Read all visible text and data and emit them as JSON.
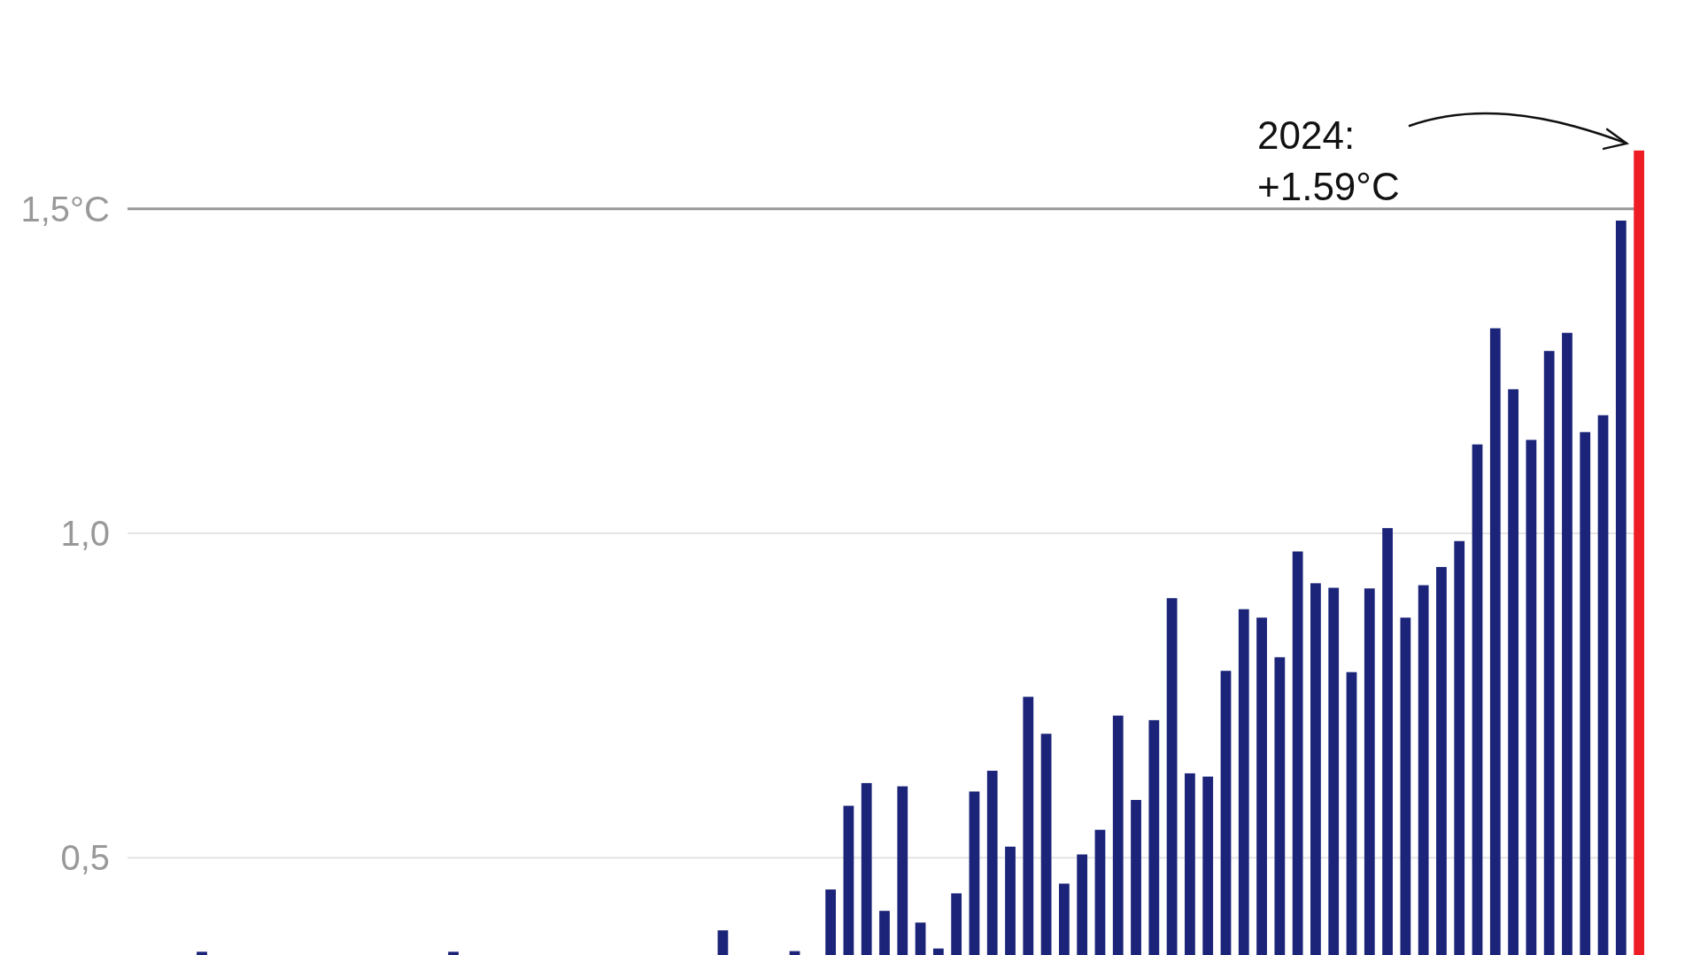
{
  "chart_data": {
    "type": "bar",
    "categories": [
      null,
      null,
      null,
      null,
      null,
      null,
      null,
      null,
      null,
      null,
      null,
      null,
      null,
      null,
      null,
      null,
      null,
      null,
      null,
      null,
      null,
      null,
      null,
      null,
      null,
      null,
      null,
      null,
      null,
      null,
      null,
      null,
      null,
      null,
      null,
      null,
      null,
      null,
      null,
      null,
      null,
      null,
      null,
      null,
      null,
      null,
      null,
      null,
      null,
      null,
      null,
      null,
      null,
      null,
      null,
      null,
      null,
      null,
      null,
      null,
      null,
      null,
      null,
      null,
      null,
      null,
      null,
      null,
      null,
      null,
      null,
      null,
      null,
      null,
      null,
      null,
      null,
      null,
      null,
      null,
      null,
      null,
      null,
      null,
      null
    ],
    "series": [
      {
        "color": "#1b2478",
        "values": [
          null,
          null,
          null,
          null,
          0.355,
          null,
          null,
          null,
          null,
          null,
          null,
          null,
          null,
          null,
          null,
          null,
          null,
          null,
          0.355,
          null,
          null,
          null,
          null,
          null,
          null,
          null,
          null,
          null,
          null,
          null,
          null,
          null,
          null,
          0.388,
          null,
          null,
          null,
          0.356,
          null,
          0.451,
          0.58,
          0.615,
          0.418,
          0.61,
          0.4,
          0.36,
          0.445,
          0.602,
          0.634,
          0.517,
          0.748,
          0.691,
          0.46,
          0.505,
          0.543,
          0.719,
          0.589,
          0.712,
          0.9,
          0.63,
          0.625,
          0.788,
          0.883,
          0.87,
          0.809,
          0.972,
          0.923,
          0.916,
          0.786,
          0.915,
          1.008,
          0.87,
          0.92,
          0.948,
          0.988,
          1.137,
          1.316,
          1.222,
          1.144,
          1.281,
          1.309,
          1.156,
          1.182,
          1.482,
          null
        ]
      },
      {
        "color": "#ee1c25",
        "values": [
          null,
          null,
          null,
          null,
          null,
          null,
          null,
          null,
          null,
          null,
          null,
          null,
          null,
          null,
          null,
          null,
          null,
          null,
          null,
          null,
          null,
          null,
          null,
          null,
          null,
          null,
          null,
          null,
          null,
          null,
          null,
          null,
          null,
          null,
          null,
          null,
          null,
          null,
          null,
          null,
          null,
          null,
          null,
          null,
          null,
          null,
          null,
          null,
          null,
          null,
          null,
          null,
          null,
          null,
          null,
          null,
          null,
          null,
          null,
          null,
          null,
          null,
          null,
          null,
          null,
          null,
          null,
          null,
          null,
          null,
          null,
          null,
          null,
          null,
          null,
          null,
          null,
          null,
          null,
          null,
          null,
          null,
          null,
          null,
          1.59
        ]
      }
    ],
    "ylim": [
      0.35,
      1.822
    ],
    "yticks": [
      {
        "value": 0.5,
        "label": "0,5"
      },
      {
        "value": 1,
        "label": "1,0"
      },
      {
        "value": 1.5,
        "label": "1,5°C"
      }
    ],
    "grid": "y",
    "tick_labels": "y",
    "ref_lines": [
      {
        "axis": "y",
        "value": 1.5,
        "color": "#999999"
      }
    ],
    "annotations": [
      "2024:\n+1.59°C"
    ]
  }
}
